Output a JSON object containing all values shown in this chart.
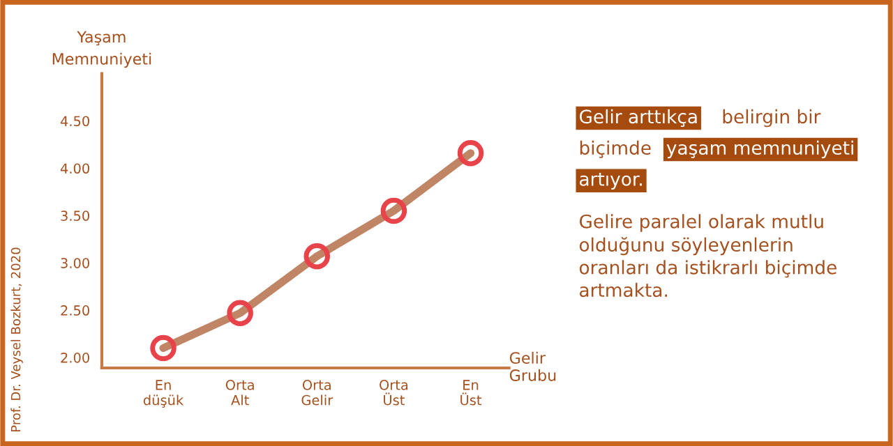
{
  "chart_data": {
    "type": "line",
    "categories": [
      "En\ndüşük",
      "Orta\nAlt",
      "Orta\nGelir",
      "Orta\nÜst",
      "En\nÜst"
    ],
    "series": [
      {
        "color": "#c08565",
        "values": [
          2.1,
          2.47,
          3.07,
          3.55,
          4.16
        ]
      }
    ],
    "xlabel": "Gelir\nGrubu",
    "ylabel": "Yaşam\nMemnuniyeti",
    "ylim": [
      1.89,
      5.0
    ],
    "yticks": [
      {
        "value": 2,
        "label": "2.00"
      },
      {
        "value": 2.5,
        "label": "2.50"
      },
      {
        "value": 3,
        "label": "3.00"
      },
      {
        "value": 3.5,
        "label": "3.50"
      },
      {
        "value": 4,
        "label": "4.00"
      },
      {
        "value": 4.5,
        "label": "4.50"
      }
    ],
    "marker": "circle",
    "line_style": "solid",
    "grid": false,
    "legend": false,
    "annotations": [
      "Gelir arttıkça",
      "belirgin bir",
      "biçimde",
      "yaşam memnuniyeti",
      "artıyor.",
      "Gelire paralel olarak mutlu\nolduğunu söyleyenlerin\noranları da istikrarlı biçimde\nartmakta.",
      "Prof. Dr. Veysel Bozkurt, 2020"
    ]
  }
}
